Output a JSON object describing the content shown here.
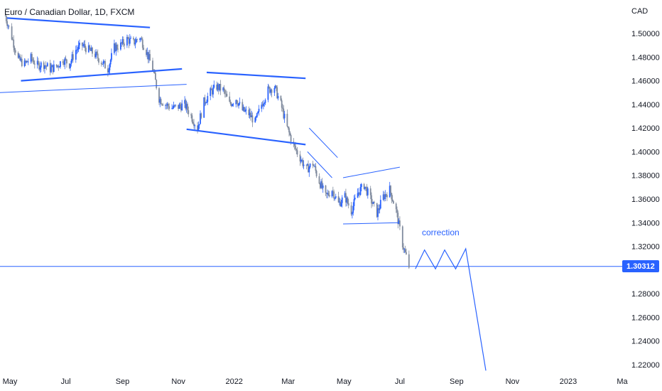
{
  "chart_data": {
    "type": "candlestick",
    "title": "Euro / Canadian Dollar, 1D, FXCM",
    "currency": "CAD",
    "y_ticks": [
      "1.50000",
      "1.48000",
      "1.46000",
      "1.44000",
      "1.42000",
      "1.40000",
      "1.38000",
      "1.36000",
      "1.34000",
      "1.32000",
      "1.28000",
      "1.26000",
      "1.24000",
      "1.22000"
    ],
    "y_tick_values": [
      1.5,
      1.48,
      1.46,
      1.44,
      1.42,
      1.4,
      1.38,
      1.36,
      1.34,
      1.32,
      1.28,
      1.26,
      1.24,
      1.22
    ],
    "x_ticks": [
      "May",
      "Jul",
      "Sep",
      "Nov",
      "2022",
      "Mar",
      "May",
      "Jul",
      "Sep",
      "Nov",
      "2023",
      "Ma"
    ],
    "x_tick_dates": [
      "2021-05-01",
      "2021-07-01",
      "2021-09-01",
      "2021-11-01",
      "2022-01-01",
      "2022-03-01",
      "2022-05-01",
      "2022-07-01",
      "2022-09-01",
      "2022-11-01",
      "2023-01-01",
      "2023-03-01"
    ],
    "current_price": "1.30312",
    "current_price_value": 1.30312,
    "annotation": "correction",
    "close_path": [
      [
        "2021-04-26",
        1.515
      ],
      [
        "2021-05-03",
        1.497
      ],
      [
        "2021-05-10",
        1.478
      ],
      [
        "2021-05-17",
        1.474
      ],
      [
        "2021-05-24",
        1.479
      ],
      [
        "2021-05-31",
        1.473
      ],
      [
        "2021-06-07",
        1.474
      ],
      [
        "2021-06-14",
        1.47
      ],
      [
        "2021-06-21",
        1.472
      ],
      [
        "2021-06-28",
        1.478
      ],
      [
        "2021-07-05",
        1.474
      ],
      [
        "2021-07-12",
        1.486
      ],
      [
        "2021-07-19",
        1.49
      ],
      [
        "2021-07-26",
        1.486
      ],
      [
        "2021-08-02",
        1.482
      ],
      [
        "2021-08-09",
        1.476
      ],
      [
        "2021-08-16",
        1.47
      ],
      [
        "2021-08-23",
        1.488
      ],
      [
        "2021-08-30",
        1.49
      ],
      [
        "2021-09-06",
        1.495
      ],
      [
        "2021-09-13",
        1.492
      ],
      [
        "2021-09-20",
        1.497
      ],
      [
        "2021-09-27",
        1.485
      ],
      [
        "2021-10-04",
        1.47
      ],
      [
        "2021-10-11",
        1.445
      ],
      [
        "2021-10-18",
        1.44
      ],
      [
        "2021-10-25",
        1.437
      ],
      [
        "2021-11-01",
        1.438
      ],
      [
        "2021-11-08",
        1.44
      ],
      [
        "2021-11-15",
        1.43
      ],
      [
        "2021-11-22",
        1.42
      ],
      [
        "2021-11-29",
        1.442
      ],
      [
        "2021-12-06",
        1.45
      ],
      [
        "2021-12-13",
        1.455
      ],
      [
        "2021-12-20",
        1.452
      ],
      [
        "2021-12-27",
        1.44
      ],
      [
        "2022-01-03",
        1.445
      ],
      [
        "2022-01-10",
        1.435
      ],
      [
        "2022-01-17",
        1.432
      ],
      [
        "2022-01-24",
        1.425
      ],
      [
        "2022-01-31",
        1.44
      ],
      [
        "2022-02-07",
        1.452
      ],
      [
        "2022-02-14",
        1.455
      ],
      [
        "2022-02-21",
        1.44
      ],
      [
        "2022-02-28",
        1.42
      ],
      [
        "2022-03-07",
        1.405
      ],
      [
        "2022-03-14",
        1.395
      ],
      [
        "2022-03-21",
        1.385
      ],
      [
        "2022-03-28",
        1.39
      ],
      [
        "2022-04-04",
        1.375
      ],
      [
        "2022-04-11",
        1.362
      ],
      [
        "2022-04-18",
        1.368
      ],
      [
        "2022-04-25",
        1.356
      ],
      [
        "2022-05-02",
        1.362
      ],
      [
        "2022-05-09",
        1.35
      ],
      [
        "2022-05-16",
        1.365
      ],
      [
        "2022-05-23",
        1.372
      ],
      [
        "2022-05-30",
        1.36
      ],
      [
        "2022-06-06",
        1.348
      ],
      [
        "2022-06-13",
        1.362
      ],
      [
        "2022-06-20",
        1.368
      ],
      [
        "2022-06-27",
        1.35
      ],
      [
        "2022-07-04",
        1.322
      ],
      [
        "2022-07-11",
        1.303
      ]
    ],
    "channels": [
      [
        [
          "2021-04-28",
          1.513
        ],
        [
          "2021-10-01",
          1.505
        ]
      ],
      [
        [
          "2021-05-13",
          1.46
        ],
        [
          "2021-11-05",
          1.47
        ]
      ],
      [
        [
          "2021-04-20",
          1.45
        ],
        [
          "2021-11-10",
          1.457
        ]
      ],
      [
        [
          "2021-12-02",
          1.467
        ],
        [
          "2022-03-20",
          1.462
        ]
      ],
      [
        [
          "2021-11-10",
          1.419
        ],
        [
          "2022-03-20",
          1.406
        ]
      ],
      [
        [
          "2022-03-24",
          1.42
        ],
        [
          "2022-04-24",
          1.395
        ]
      ],
      [
        [
          "2022-03-22",
          1.4
        ],
        [
          "2022-04-18",
          1.378
        ]
      ],
      [
        [
          "2022-04-30",
          1.378
        ],
        [
          "2022-07-01",
          1.387
        ]
      ],
      [
        [
          "2022-04-30",
          1.339
        ],
        [
          "2022-06-30",
          1.34
        ]
      ]
    ],
    "projection": [
      [
        "2022-07-18",
        1.301
      ],
      [
        "2022-07-28",
        1.317
      ],
      [
        "2022-08-09",
        1.301
      ],
      [
        "2022-08-19",
        1.317
      ],
      [
        "2022-08-31",
        1.301
      ],
      [
        "2022-09-11",
        1.318
      ],
      [
        "2022-10-03",
        1.215
      ]
    ]
  }
}
